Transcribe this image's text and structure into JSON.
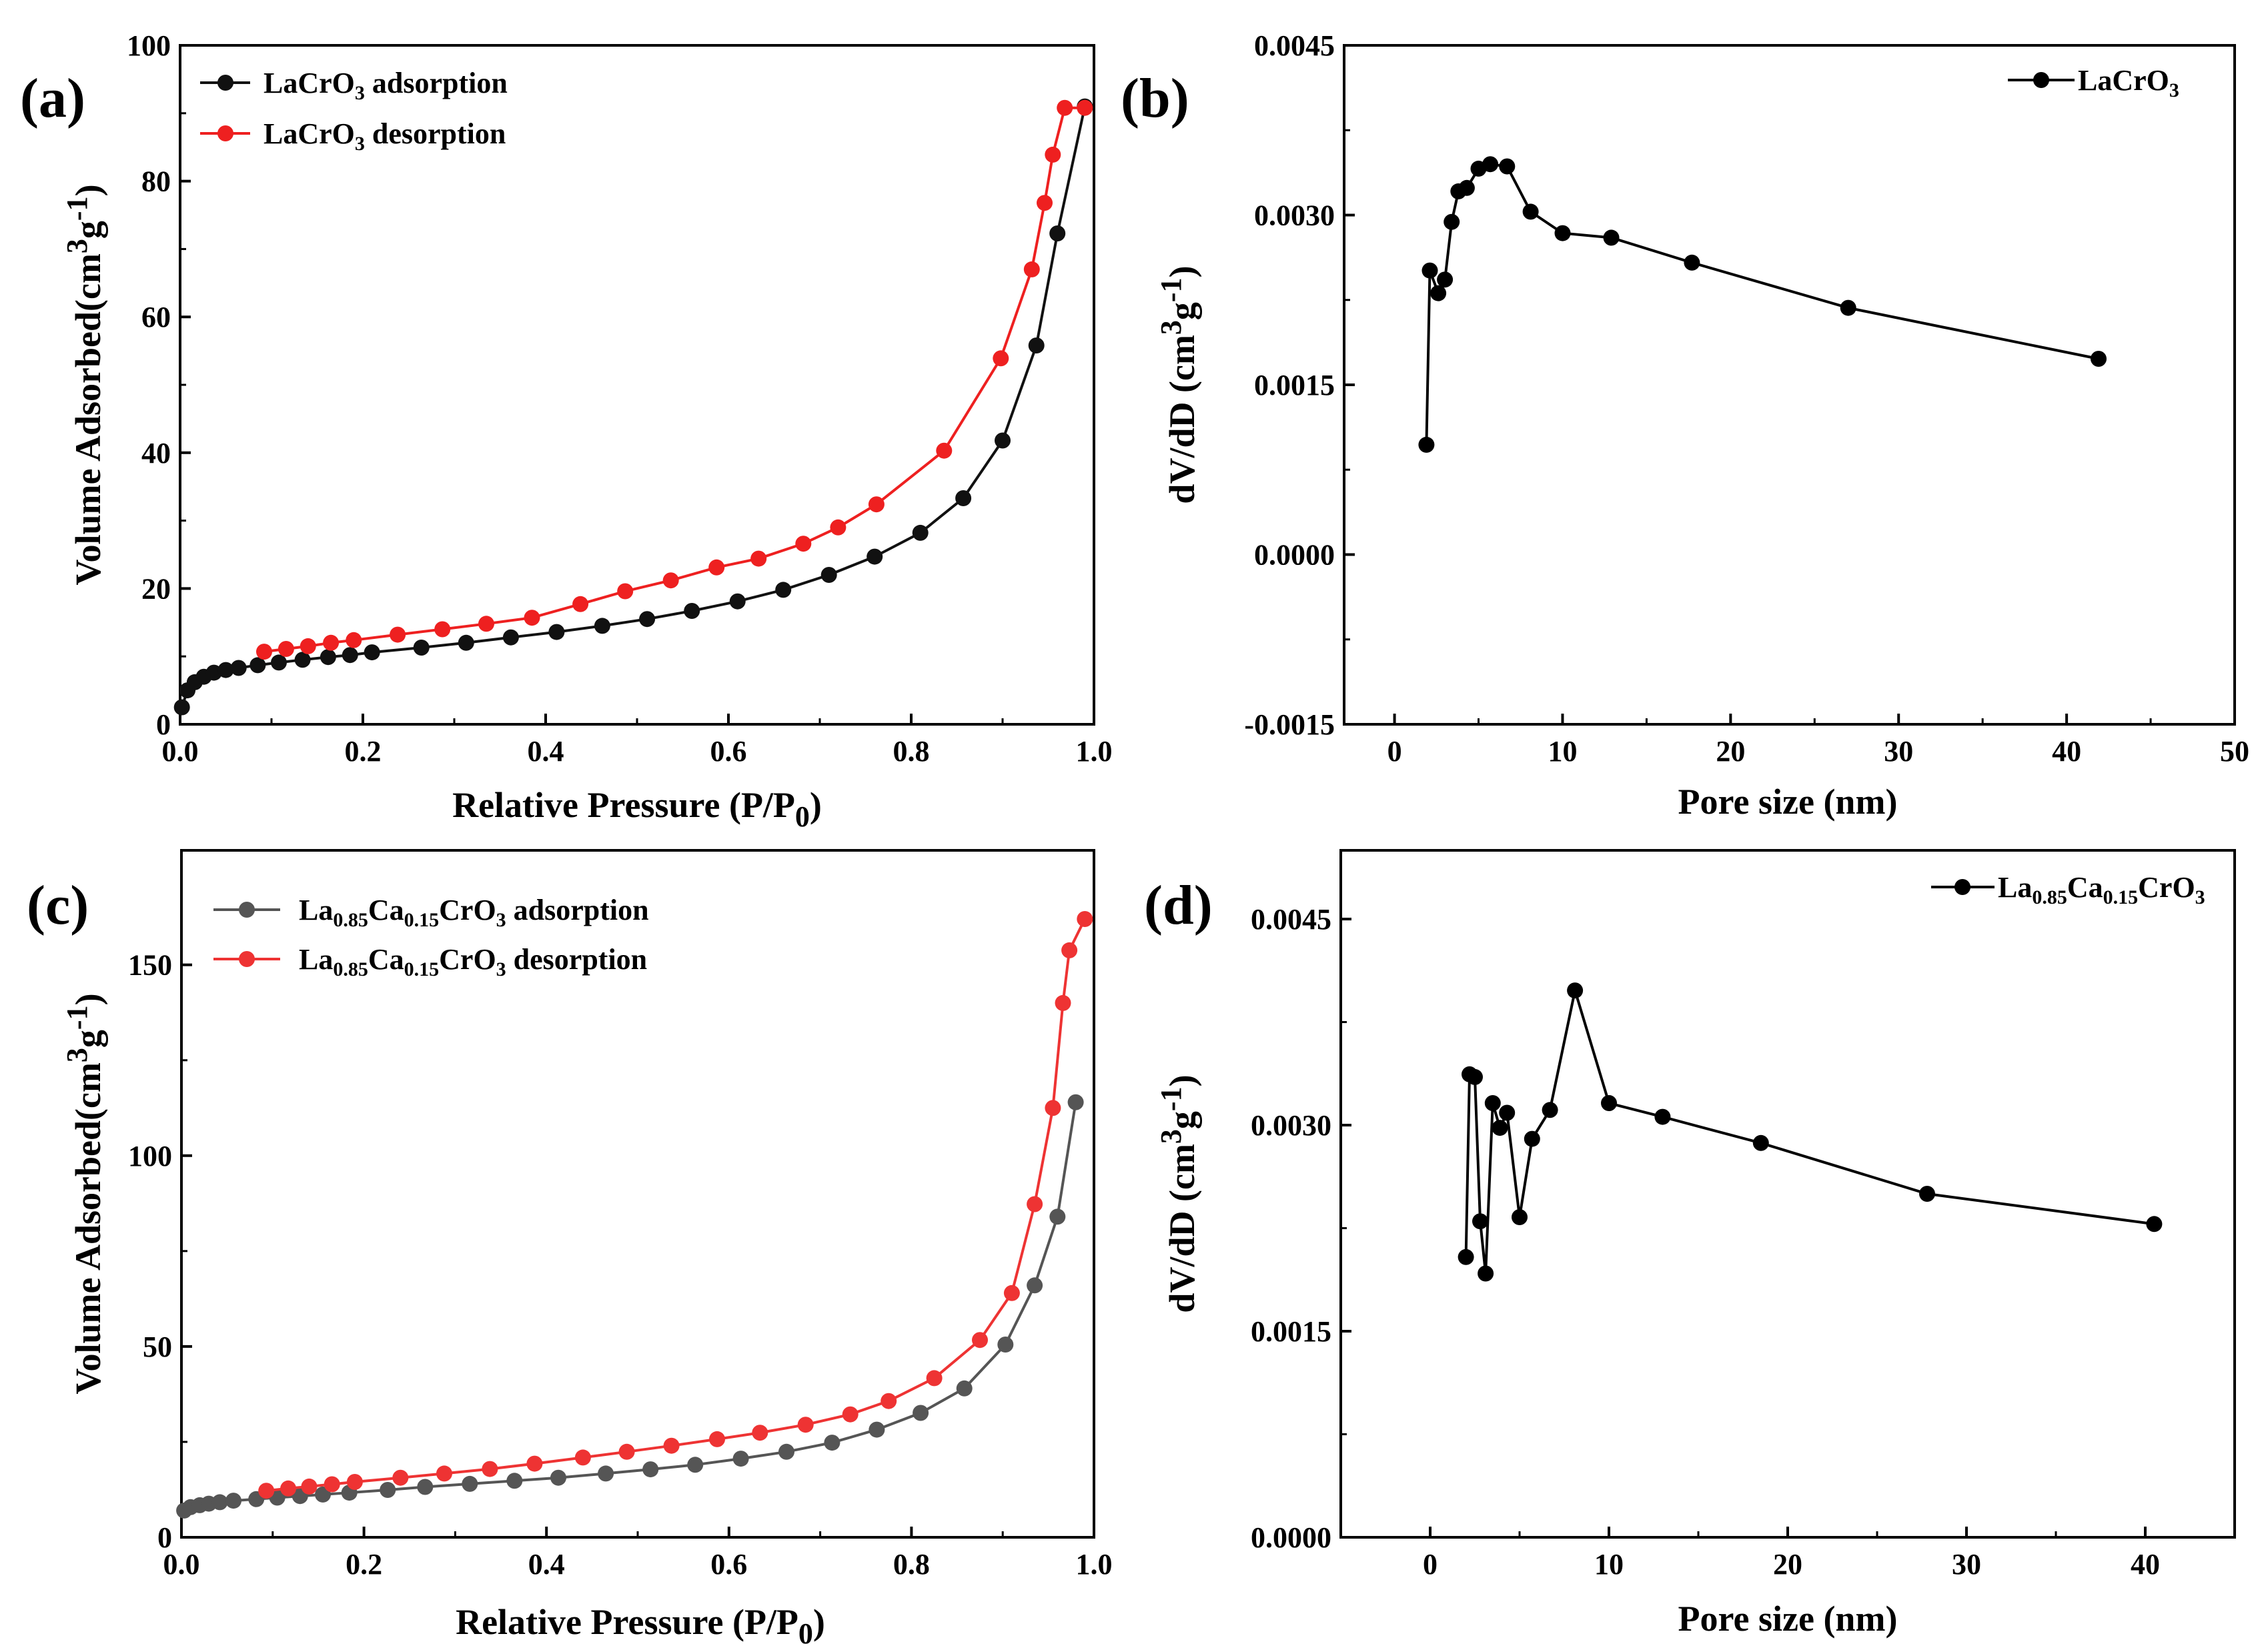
{
  "chart_data": [
    {
      "panel_label": "(a)",
      "type": "line",
      "xlabel_main": "Relative Pressure (P/P",
      "xlabel_sub": "0",
      "xlabel_close": ")",
      "ylabel_main": "Volume Adsorbed(cm",
      "ylabel_sup1": "3",
      "ylabel_mid": "g",
      "ylabel_sup2": "-1",
      "ylabel_close": ")",
      "xlim": [
        0,
        1.0
      ],
      "ylim": [
        0,
        100
      ],
      "xticks": [
        "0.0",
        "0.2",
        "0.4",
        "0.6",
        "0.8",
        "1.0"
      ],
      "yticks": [
        "0",
        "20",
        "40",
        "60",
        "80",
        "100"
      ],
      "legend_position": "top-left",
      "series": [
        {
          "name": "LaCrO3 adsorption",
          "legend": {
            "a": "LaCrO",
            "sub": "3",
            "b": " adsorption"
          },
          "color": "#111111",
          "x": [
            0.002,
            0.008,
            0.016,
            0.026,
            0.037,
            0.05,
            0.064,
            0.085,
            0.108,
            0.134,
            0.162,
            0.186,
            0.21,
            0.264,
            0.313,
            0.362,
            0.412,
            0.462,
            0.511,
            0.56,
            0.61,
            0.66,
            0.71,
            0.76,
            0.81,
            0.857,
            0.9,
            0.937,
            0.96,
            0.99
          ],
          "y": [
            2.5,
            5.0,
            6.2,
            7.0,
            7.6,
            8.0,
            8.3,
            8.7,
            9.1,
            9.5,
            9.9,
            10.2,
            10.6,
            11.3,
            12.0,
            12.8,
            13.6,
            14.5,
            15.5,
            16.7,
            18.1,
            19.8,
            22.0,
            24.7,
            28.2,
            33.3,
            41.8,
            55.8,
            72.3,
            91.0
          ]
        },
        {
          "name": "LaCrO3 desorption",
          "legend": {
            "a": "LaCrO",
            "sub": "3",
            "b": " desorption"
          },
          "color": "#ee2020",
          "x": [
            0.092,
            0.116,
            0.14,
            0.165,
            0.19,
            0.238,
            0.287,
            0.335,
            0.385,
            0.438,
            0.487,
            0.537,
            0.587,
            0.633,
            0.682,
            0.72,
            0.762,
            0.836,
            0.898,
            0.932,
            0.946,
            0.955,
            0.968,
            0.99
          ],
          "y": [
            10.7,
            11.1,
            11.5,
            12.0,
            12.4,
            13.2,
            14.0,
            14.8,
            15.7,
            17.7,
            19.6,
            21.2,
            23.1,
            24.4,
            26.6,
            29.0,
            32.4,
            40.3,
            53.9,
            67.0,
            76.8,
            83.9,
            90.8,
            90.8
          ]
        }
      ]
    },
    {
      "panel_label": "(b)",
      "type": "line",
      "xlabel": "Pore size (nm)",
      "ylabel_main": "dV/dD (cm",
      "ylabel_sup1": "3",
      "ylabel_mid": "g",
      "ylabel_sup2": "-1",
      "ylabel_close": ")",
      "xlim": [
        -3,
        50
      ],
      "ylim": [
        -0.0015,
        0.0045
      ],
      "xticks": [
        "0",
        "10",
        "20",
        "30",
        "40",
        "50"
      ],
      "yticks": [
        "-0.0015",
        "0.0000",
        "0.0015",
        "0.0030",
        "0.0045"
      ],
      "legend_position": "top-right",
      "series": [
        {
          "name": "LaCrO3",
          "legend": {
            "a": "LaCrO",
            "sub": "3",
            "b": ""
          },
          "color": "#000000",
          "x": [
            1.9,
            2.1,
            2.6,
            3.0,
            3.4,
            3.8,
            4.3,
            5.0,
            5.7,
            6.7,
            8.1,
            10.0,
            12.9,
            17.7,
            27.0,
            41.9
          ],
          "y": [
            0.00097,
            0.00251,
            0.00231,
            0.00243,
            0.00294,
            0.00321,
            0.00324,
            0.00341,
            0.00345,
            0.00343,
            0.00303,
            0.00284,
            0.0028,
            0.00258,
            0.00218,
            0.00173
          ]
        }
      ]
    },
    {
      "panel_label": "(c)",
      "type": "line",
      "xlabel_main": "Relative Pressure (P/P",
      "xlabel_sub": "0",
      "xlabel_close": ")",
      "ylabel_main": "Volume Adsorbed(cm",
      "ylabel_sup1": "3",
      "ylabel_mid": "g",
      "ylabel_sup2": "-1",
      "ylabel_close": ")",
      "xlim": [
        0,
        1.0
      ],
      "ylim": [
        0,
        180
      ],
      "xticks": [
        "0.0",
        "0.2",
        "0.4",
        "0.6",
        "0.8",
        "1.0"
      ],
      "yticks": [
        "0",
        "50",
        "100",
        "150"
      ],
      "legend_position": "top-left",
      "series": [
        {
          "name": "La0.85Ca0.15CrO3 adsorption",
          "legend": {
            "a": "La",
            "sub1": "0.85",
            "b": "Ca",
            "sub2": "0.15",
            "c": "CrO",
            "sub3": "3",
            "d": " adsorption"
          },
          "color": "#555555",
          "x": [
            0.003,
            0.01,
            0.02,
            0.03,
            0.042,
            0.057,
            0.082,
            0.105,
            0.13,
            0.155,
            0.184,
            0.226,
            0.267,
            0.316,
            0.365,
            0.413,
            0.465,
            0.514,
            0.563,
            0.613,
            0.663,
            0.713,
            0.762,
            0.81,
            0.858,
            0.903,
            0.935,
            0.96,
            0.98
          ],
          "y": [
            7.0,
            7.9,
            8.4,
            8.8,
            9.2,
            9.6,
            10.0,
            10.4,
            10.8,
            11.2,
            11.7,
            12.4,
            13.2,
            14.0,
            14.8,
            15.6,
            16.7,
            17.8,
            19.0,
            20.6,
            22.4,
            24.8,
            28.2,
            32.6,
            39.0,
            50.5,
            66.0,
            84.0,
            114.0
          ]
        },
        {
          "name": "La0.85Ca0.15CrO3 desorption",
          "legend": {
            "a": "La",
            "sub1": "0.85",
            "b": "Ca",
            "sub2": "0.15",
            "c": "CrO",
            "sub3": "3",
            "d": " desorption"
          },
          "color": "#ee3333",
          "x": [
            0.093,
            0.117,
            0.14,
            0.165,
            0.19,
            0.24,
            0.288,
            0.338,
            0.387,
            0.44,
            0.488,
            0.537,
            0.587,
            0.634,
            0.684,
            0.733,
            0.775,
            0.825,
            0.875,
            0.91,
            0.935,
            0.955,
            0.966,
            0.973,
            0.99
          ],
          "y": [
            12.2,
            12.8,
            13.3,
            13.9,
            14.5,
            15.6,
            16.7,
            17.9,
            19.3,
            20.9,
            22.4,
            24.0,
            25.7,
            27.4,
            29.5,
            32.2,
            35.7,
            41.7,
            51.7,
            64.0,
            87.3,
            112.5,
            140.0,
            153.8,
            162.0
          ]
        }
      ]
    },
    {
      "panel_label": "(d)",
      "type": "line",
      "xlabel": "Pore size (nm)",
      "ylabel_main": "dV/dD (cm",
      "ylabel_sup1": "3",
      "ylabel_mid": "g",
      "ylabel_sup2": "-1",
      "ylabel_close": ")",
      "xlim": [
        -5,
        45
      ],
      "ylim": [
        0,
        0.005
      ],
      "xticks": [
        "0",
        "10",
        "20",
        "30",
        "40"
      ],
      "yticks": [
        "0.0000",
        "0.0015",
        "0.0030",
        "0.0045"
      ],
      "legend_position": "top-right",
      "series": [
        {
          "name": "La0.85Ca0.15CrO3",
          "legend": {
            "a": "La",
            "sub1": "0.85",
            "b": "Ca",
            "sub2": "0.15",
            "c": "CrO",
            "sub3": "3",
            "d": ""
          },
          "color": "#000000",
          "x": [
            2.0,
            2.2,
            2.5,
            2.8,
            3.1,
            3.5,
            3.9,
            4.3,
            5.0,
            5.7,
            6.7,
            8.1,
            10.0,
            13.0,
            18.5,
            27.8,
            40.5
          ],
          "y": [
            0.00204,
            0.00337,
            0.00335,
            0.0023,
            0.00192,
            0.00316,
            0.00298,
            0.00309,
            0.00233,
            0.0029,
            0.00311,
            0.00398,
            0.00316,
            0.00306,
            0.00287,
            0.0025,
            0.00228
          ]
        }
      ]
    }
  ]
}
